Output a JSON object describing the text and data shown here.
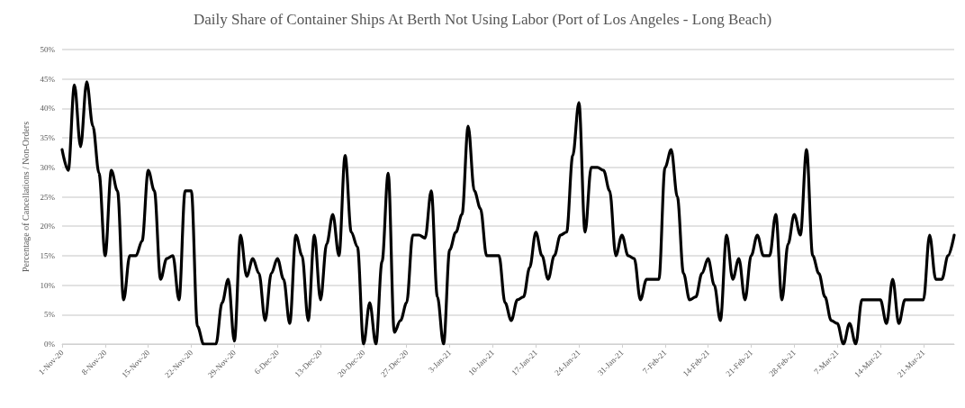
{
  "chart_data": {
    "type": "line",
    "title": "Daily Share of Container Ships At Berth Not Using Labor (Port of Los Angeles - Long Beach)",
    "ylabel": "Percentage of Cancellations / Non-Orders",
    "categories": [
      "1-Nov-20",
      null,
      null,
      null,
      null,
      null,
      null,
      "8-Nov-20",
      null,
      null,
      null,
      null,
      null,
      null,
      "15-Nov-20",
      null,
      null,
      null,
      null,
      null,
      null,
      "22-Nov-20",
      null,
      null,
      null,
      null,
      null,
      null,
      "29-Nov-20",
      null,
      null,
      null,
      null,
      null,
      null,
      "6-Dec-20",
      null,
      null,
      null,
      null,
      null,
      null,
      "13-Dec-20",
      null,
      null,
      null,
      null,
      null,
      null,
      "20-Dec-20",
      null,
      null,
      null,
      null,
      null,
      null,
      "27-Dec-20",
      null,
      null,
      null,
      null,
      null,
      null,
      "3-Jan-21",
      null,
      null,
      null,
      null,
      null,
      null,
      "10-Jan-21",
      null,
      null,
      null,
      null,
      null,
      null,
      "17-Jan-21",
      null,
      null,
      null,
      null,
      null,
      null,
      "24-Jan-21",
      null,
      null,
      null,
      null,
      null,
      null,
      "31-Jan-21",
      null,
      null,
      null,
      null,
      null,
      null,
      "7-Feb-21",
      null,
      null,
      null,
      null,
      null,
      null,
      "14-Feb-21",
      null,
      null,
      null,
      null,
      null,
      null,
      "21-Feb-21",
      null,
      null,
      null,
      null,
      null,
      null,
      "28-Feb-21",
      null,
      null,
      null,
      null,
      null,
      null,
      "7-Mar-21",
      null,
      null,
      null,
      null,
      null,
      null,
      "14-Mar-21",
      null,
      null,
      null,
      null,
      null,
      null,
      "21-Mar-21",
      null,
      null,
      null,
      null,
      null
    ],
    "series": [
      {
        "color": "#000000",
        "values": [
          33,
          29.5,
          44,
          33.5,
          44.5,
          37,
          29,
          15,
          29.5,
          26,
          7.5,
          15,
          15,
          17.5,
          29.5,
          26,
          11,
          14.5,
          15,
          7.5,
          26,
          26,
          3,
          0,
          0,
          0,
          7,
          11,
          0.5,
          18.5,
          11.5,
          14.5,
          12,
          4,
          12,
          14.5,
          11,
          3.5,
          18.5,
          15,
          4,
          18.5,
          7.5,
          17,
          22,
          15,
          32,
          19,
          16.5,
          0,
          7,
          0,
          14,
          29,
          2,
          4,
          7,
          18.5,
          18.5,
          18,
          26,
          8,
          0,
          16,
          19,
          22,
          37,
          26,
          23,
          15,
          15,
          15,
          7,
          4,
          7.5,
          8,
          13,
          19,
          15,
          11,
          15,
          18.5,
          19,
          32,
          41,
          19,
          30,
          30,
          29.5,
          26,
          15,
          18.5,
          15,
          14.5,
          7.5,
          11,
          11,
          11,
          30,
          33,
          25,
          12,
          7.5,
          8,
          12,
          14.5,
          10,
          4,
          18.5,
          11,
          14.5,
          7.5,
          15,
          18.5,
          15,
          15,
          22,
          7.5,
          17,
          22,
          18.5,
          33,
          15,
          12,
          8,
          4,
          3.5,
          0,
          3.5,
          0,
          7.5,
          7.5,
          7.5,
          7.5,
          3.5,
          11,
          3.5,
          7.5,
          7.5,
          7.5,
          7.5,
          18.5,
          11,
          11,
          15,
          18.5
        ]
      }
    ],
    "ylim": [
      0,
      50
    ],
    "yticks": [
      {
        "value": 0,
        "label": "0%"
      },
      {
        "value": 5,
        "label": "5%"
      },
      {
        "value": 10,
        "label": "10%"
      },
      {
        "value": 15,
        "label": "15%"
      },
      {
        "value": 20,
        "label": "20%"
      },
      {
        "value": 25,
        "label": "25%"
      },
      {
        "value": 30,
        "label": "30%"
      },
      {
        "value": 35,
        "label": "35%"
      },
      {
        "value": 40,
        "label": "40%"
      },
      {
        "value": 45,
        "label": "45%"
      },
      {
        "value": 50,
        "label": "50%"
      }
    ],
    "grid": "y",
    "marker": "none",
    "line_style": "solid"
  }
}
